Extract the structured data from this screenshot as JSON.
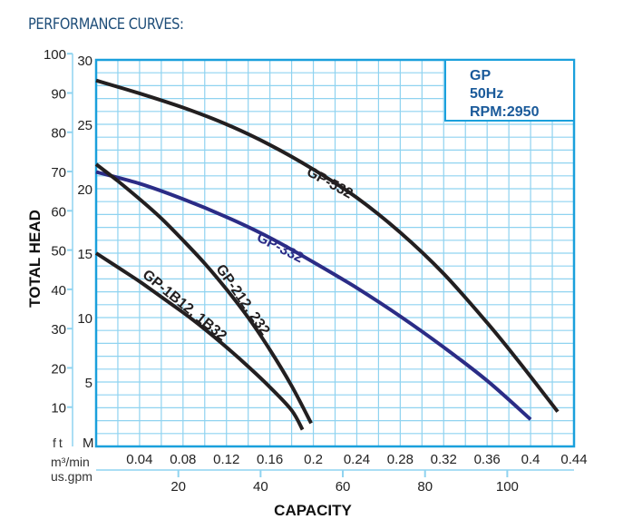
{
  "page": {
    "title": "PERFORMANCE CURVES:"
  },
  "legend": {
    "lines": [
      "GP",
      "50Hz",
      "RPM:2950"
    ]
  },
  "colors": {
    "grid": "#8fd3f0",
    "frame": "#1aa0dc",
    "title": "#1f4e79",
    "legend_text": "#1a5a9a",
    "black_curve": "#231f20",
    "blue_curve": "#2b2c86"
  },
  "chart_data": {
    "type": "line",
    "title": "PERFORMANCE CURVES:",
    "xlabel": "CAPACITY",
    "ylabel": "TOTAL HEAD",
    "x_unit_primary": "m³/min",
    "x_unit_secondary": "us.gpm",
    "y_unit_primary": "M",
    "y_unit_secondary": "ft",
    "xlim": [
      0,
      0.44
    ],
    "ylim": [
      0,
      30
    ],
    "x_ticks": [
      0.04,
      0.08,
      0.12,
      0.16,
      0.2,
      0.24,
      0.28,
      0.32,
      0.36,
      0.4,
      0.44
    ],
    "x_tick_labels": [
      "0.04",
      "0.08",
      "0.12",
      "0.16",
      "0.2",
      "0.24",
      "0.28",
      "0.32",
      "0.36",
      "0.4",
      "0.44"
    ],
    "x2_ticks": [
      20,
      40,
      60,
      80,
      100
    ],
    "x2_tick_labels": [
      "20",
      "40",
      "60",
      "80",
      "100"
    ],
    "y_ticks": [
      5,
      10,
      15,
      20,
      25,
      30
    ],
    "y_tick_labels": [
      "5",
      "10",
      "15",
      "20",
      "25",
      "30"
    ],
    "y2_ticks": [
      10,
      20,
      30,
      40,
      50,
      60,
      70,
      80,
      90,
      100
    ],
    "y2_tick_labels": [
      "10",
      "20",
      "30",
      "40",
      "50",
      "60",
      "70",
      "80",
      "90",
      "100"
    ],
    "grid": true,
    "grid_x_step": 0.02,
    "grid_y_step": 1,
    "legend_placement": "top-right",
    "series": [
      {
        "name": "GP-532",
        "color": "#231f20",
        "x": [
          0,
          0.04,
          0.08,
          0.12,
          0.16,
          0.2,
          0.24,
          0.28,
          0.32,
          0.36,
          0.39,
          0.425
        ],
        "y": [
          28.4,
          27.4,
          26.3,
          25.0,
          23.4,
          21.5,
          19.3,
          16.6,
          13.4,
          9.6,
          6.5,
          2.7
        ]
      },
      {
        "name": "GP-332",
        "color": "#2b2c86",
        "x": [
          0,
          0.04,
          0.08,
          0.12,
          0.16,
          0.2,
          0.24,
          0.28,
          0.32,
          0.36,
          0.4
        ],
        "y": [
          21.3,
          20.4,
          19.2,
          17.8,
          16.2,
          14.3,
          12.3,
          10.1,
          7.7,
          5.1,
          2.1
        ]
      },
      {
        "name": "GP-212, 232",
        "color": "#231f20",
        "x": [
          0,
          0.02,
          0.04,
          0.06,
          0.08,
          0.1,
          0.12,
          0.14,
          0.16,
          0.18,
          0.198
        ],
        "y": [
          21.9,
          20.6,
          19.2,
          17.7,
          16.0,
          14.2,
          12.2,
          10.0,
          7.5,
          4.7,
          1.8
        ]
      },
      {
        "name": "GP-1B12, 1B32",
        "color": "#231f20",
        "x": [
          0,
          0.02,
          0.04,
          0.06,
          0.08,
          0.1,
          0.12,
          0.14,
          0.16,
          0.18,
          0.19
        ],
        "y": [
          15.0,
          13.9,
          12.8,
          11.6,
          10.4,
          9.1,
          7.7,
          6.2,
          4.6,
          2.8,
          1.3
        ]
      }
    ],
    "annotations": [
      {
        "text": "GP-532",
        "series": "GP-532"
      },
      {
        "text": "GP-332",
        "series": "GP-332"
      },
      {
        "text": "GP-212, 232",
        "series": "GP-212, 232"
      },
      {
        "text": "GP-1B12, 1B32",
        "series": "GP-1B12, 1B32"
      }
    ]
  }
}
